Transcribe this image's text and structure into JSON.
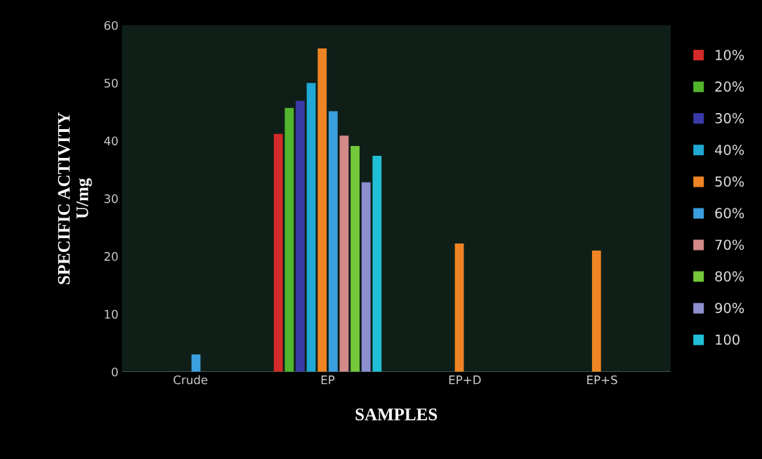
{
  "chart_data": {
    "type": "bar",
    "xlabel": "SAMPLES",
    "ylabel": "SPECIFIC ACTIVITY\nU/mg",
    "categories": [
      "Crude",
      "EP",
      "EP+D",
      "EP+S"
    ],
    "series": [
      {
        "name": "10%",
        "color": "#d42a2a",
        "values": [
          null,
          41.2,
          null,
          null
        ]
      },
      {
        "name": "20%",
        "color": "#52b52e",
        "values": [
          null,
          45.7,
          null,
          null
        ]
      },
      {
        "name": "30%",
        "color": "#3a3aa8",
        "values": [
          null,
          46.9,
          null,
          null
        ]
      },
      {
        "name": "40%",
        "color": "#1fa9d4",
        "values": [
          null,
          50,
          null,
          null
        ]
      },
      {
        "name": "50%",
        "color": "#ee8424",
        "values": [
          null,
          56,
          22.2,
          21
        ]
      },
      {
        "name": "60%",
        "color": "#3b9fe0",
        "values": [
          3,
          45.1,
          null,
          null
        ]
      },
      {
        "name": "70%",
        "color": "#d48a88",
        "values": [
          null,
          40.9,
          null,
          null
        ]
      },
      {
        "name": "80%",
        "color": "#74c83a",
        "values": [
          null,
          39.1,
          null,
          null
        ]
      },
      {
        "name": "90%",
        "color": "#8d8fd0",
        "values": [
          null,
          32.8,
          null,
          null
        ]
      },
      {
        "name": "100",
        "color": "#22c0d6",
        "values": [
          null,
          37.4,
          null,
          null
        ]
      }
    ],
    "ylim": [
      0,
      60
    ],
    "yticks": [
      0,
      10,
      20,
      30,
      40,
      50,
      60
    ],
    "grid": false,
    "legend": "right"
  }
}
